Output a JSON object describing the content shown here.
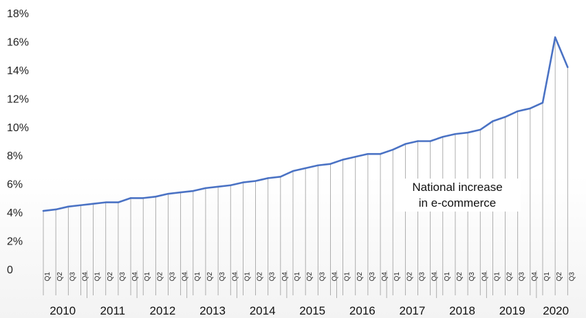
{
  "chart_data": {
    "type": "line",
    "title": "",
    "xlabel": "",
    "ylabel": "",
    "ylim": [
      0,
      18
    ],
    "y_ticks": [
      "0",
      "2%",
      "4%",
      "6%",
      "8%",
      "10%",
      "12%",
      "14%",
      "16%",
      "18%"
    ],
    "quarter_labels": [
      "Q1",
      "Q2",
      "Q3",
      "Q4"
    ],
    "years": [
      "2010",
      "2011",
      "2012",
      "2013",
      "2014",
      "2015",
      "2016",
      "2017",
      "2018",
      "2019",
      "2020"
    ],
    "series": [
      {
        "values": [
          4.1,
          4.2,
          4.4,
          4.5,
          4.6,
          4.7,
          4.7,
          5.0,
          5.0,
          5.1,
          5.3,
          5.4,
          5.5,
          5.7,
          5.8,
          5.9,
          6.1,
          6.2,
          6.4,
          6.5,
          6.9,
          7.1,
          7.3,
          7.4,
          7.7,
          7.9,
          8.1,
          8.1,
          8.4,
          8.8,
          9.0,
          9.0,
          9.3,
          9.5,
          9.6,
          9.8,
          10.4,
          10.7,
          11.1,
          11.3,
          11.7,
          16.3,
          14.2
        ]
      }
    ],
    "annotation": [
      "National increase",
      "in e-commerce"
    ],
    "line_color": "#4a72c4",
    "drop_line_color": "#9a9a9a",
    "grid": false
  }
}
